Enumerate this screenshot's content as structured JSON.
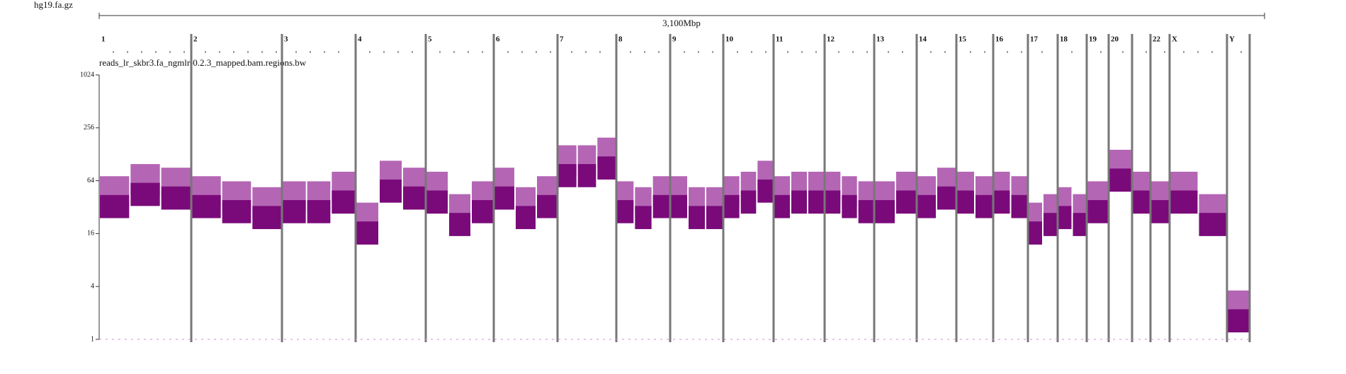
{
  "header": {
    "file": "hg19.fa.gz"
  },
  "ruler": {
    "label": "3,100Mbp"
  },
  "track": {
    "name": "reads_lr_skbr3.fa_ngmlr-0.2.3_mapped.bam.regions.bw",
    "ylim": [
      1,
      1024
    ],
    "yticks": [
      1,
      4,
      16,
      64,
      256,
      1024
    ],
    "log": true,
    "light_color": "#b466b4",
    "dark_color": "#7a0a7a"
  },
  "chromosomes": [
    {
      "label": "1",
      "coverage": [
        40,
        55,
        50
      ]
    },
    {
      "label": "2",
      "coverage": [
        40,
        35,
        30
      ]
    },
    {
      "label": "3",
      "coverage": [
        35,
        35,
        45
      ]
    },
    {
      "label": "4",
      "coverage": [
        20,
        60,
        50
      ]
    },
    {
      "label": "5",
      "coverage": [
        45,
        25,
        35
      ]
    },
    {
      "label": "6",
      "coverage": [
        50,
        30,
        40
      ]
    },
    {
      "label": "7",
      "coverage": [
        90,
        90,
        110
      ]
    },
    {
      "label": "8",
      "coverage": [
        35,
        30,
        40
      ]
    },
    {
      "label": "9",
      "coverage": [
        40,
        30,
        30
      ]
    },
    {
      "label": "10",
      "coverage": [
        40,
        45,
        60
      ]
    },
    {
      "label": "11",
      "coverage": [
        40,
        45,
        45
      ]
    },
    {
      "label": "12",
      "coverage": [
        45,
        40,
        35
      ]
    },
    {
      "label": "13",
      "coverage": [
        35,
        45
      ]
    },
    {
      "label": "14",
      "coverage": [
        40,
        50
      ]
    },
    {
      "label": "15",
      "coverage": [
        45,
        40
      ]
    },
    {
      "label": "16",
      "coverage": [
        45,
        40
      ]
    },
    {
      "label": "17",
      "coverage": [
        20,
        25
      ]
    },
    {
      "label": "18",
      "coverage": [
        30,
        25
      ]
    },
    {
      "label": "19",
      "coverage": [
        35
      ]
    },
    {
      "label": "20",
      "coverage": [
        80
      ]
    },
    {
      "label": null,
      "coverage": [
        45
      ]
    },
    {
      "label": "22",
      "coverage": [
        35
      ]
    },
    {
      "label": "X",
      "coverage": [
        45,
        25
      ]
    },
    {
      "label": "Y",
      "coverage": [
        2
      ]
    }
  ]
}
